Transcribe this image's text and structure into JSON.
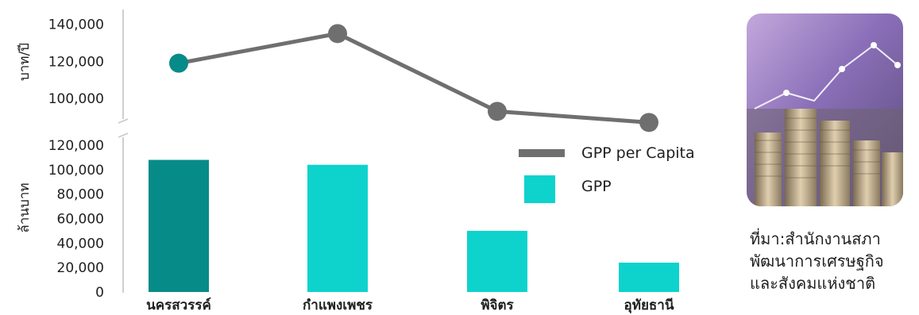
{
  "chart_data": {
    "type": "bar+line",
    "categories": [
      "นครสวรรค์",
      "กำแพงเพชร",
      "พิจิตร",
      "อุทัยธานี"
    ],
    "line": {
      "ylabel": "บาท/ปี",
      "ylim": [
        88000,
        148000
      ],
      "ticks": [
        "100,000",
        "120,000",
        "140,000"
      ],
      "tick_values": [
        100000,
        120000,
        140000
      ],
      "series": [
        {
          "name": "GPP per Capita",
          "values": [
            119000,
            135000,
            93000,
            87000
          ]
        }
      ]
    },
    "bar": {
      "ylabel": "ล้านบาท",
      "ylim": [
        0,
        120000
      ],
      "ticks": [
        "0",
        "20,000",
        "40,000",
        "60,000",
        "80,000",
        "100,000",
        "120,000"
      ],
      "tick_values": [
        0,
        20000,
        40000,
        60000,
        80000,
        100000,
        120000
      ],
      "series": [
        {
          "name": "GPP",
          "values": [
            108000,
            104000,
            50000,
            24000
          ]
        }
      ]
    },
    "colors": {
      "line": "#706f6f",
      "bar": "#0dd3cc",
      "highlight": "#078b88"
    },
    "legend": [
      "GPP per Capita",
      "GPP"
    ]
  },
  "source": {
    "text": "ที่มา:สำนักงานสภา\nพัฒนาการเศรษฐกิจ\nและสังคมแห่งชาติ"
  },
  "image": {
    "icon": "coins-chart-photo"
  }
}
